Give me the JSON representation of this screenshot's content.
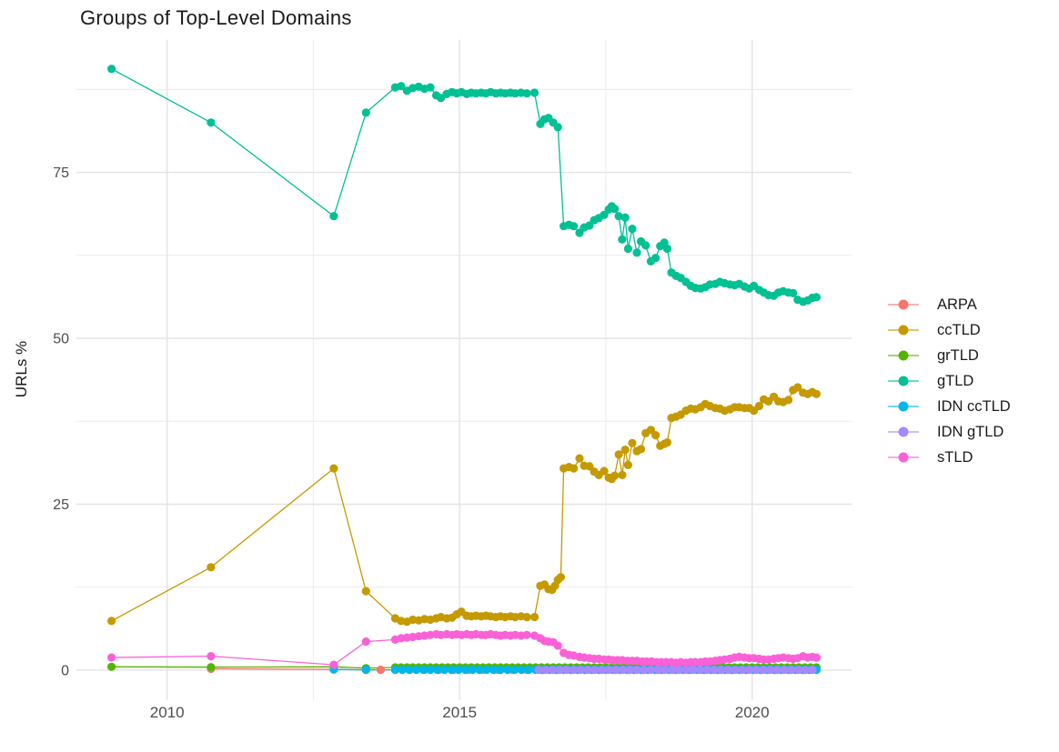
{
  "title": "Groups of Top-Level Domains",
  "y_axis": {
    "title": "URLs %",
    "tick_labels": [
      "0",
      "25",
      "50",
      "75"
    ],
    "tick_values": [
      0,
      25,
      50,
      75
    ],
    "minor_values": [
      12.5,
      37.5,
      62.5,
      87.5
    ]
  },
  "x_axis": {
    "tick_labels": [
      "2010",
      "2015",
      "2020"
    ],
    "tick_values": [
      2010,
      2015,
      2020
    ],
    "minor_values": [
      2012.5,
      2017.5
    ]
  },
  "colors": {
    "background": "#FFFFFF",
    "grid_major": "#E3E3E3",
    "grid_minor": "#ECECEC",
    "tick_text": "#4D4D4D",
    "title_text": "#1A1A1A"
  },
  "chart_data": {
    "type": "line",
    "title": "Groups of Top-Level Domains",
    "xlabel": "",
    "ylabel": "URLs %",
    "xlim": [
      2008.45,
      2021.7
    ],
    "ylim": [
      -4.5,
      95
    ],
    "grid": true,
    "legend_position": "right",
    "marker": "point",
    "series": [
      {
        "name": "ARPA",
        "color": "#F8766D",
        "points": [
          [
            2010.75,
            0.2
          ],
          [
            2012.85,
            0.1
          ]
        ],
        "flat": {
          "from": 2013.4,
          "to": 2021.1,
          "step": 0.25,
          "value": 0.05
        }
      },
      {
        "name": "ccTLD",
        "color": "#C49A00",
        "points": [
          [
            2009.05,
            7.4
          ],
          [
            2010.75,
            15.5
          ],
          [
            2012.85,
            30.4
          ],
          [
            2013.4,
            11.9
          ],
          [
            2013.9,
            7.8
          ],
          [
            2014.0,
            7.4
          ],
          [
            2014.1,
            7.3
          ],
          [
            2014.2,
            7.6
          ],
          [
            2014.3,
            7.5
          ],
          [
            2014.4,
            7.7
          ],
          [
            2014.5,
            7.6
          ],
          [
            2014.6,
            7.8
          ],
          [
            2014.68,
            8.0
          ],
          [
            2014.78,
            7.8
          ],
          [
            2014.87,
            7.9
          ],
          [
            2014.95,
            8.4
          ],
          [
            2015.03,
            8.8
          ],
          [
            2015.12,
            8.2
          ],
          [
            2015.2,
            8.1
          ],
          [
            2015.28,
            8.2
          ],
          [
            2015.37,
            8.1
          ],
          [
            2015.45,
            8.2
          ],
          [
            2015.53,
            8.1
          ],
          [
            2015.62,
            8.0
          ],
          [
            2015.7,
            8.1
          ],
          [
            2015.78,
            8.0
          ],
          [
            2015.87,
            8.1
          ],
          [
            2015.95,
            8.0
          ],
          [
            2016.05,
            8.1
          ],
          [
            2016.15,
            8.0
          ],
          [
            2016.28,
            8.0
          ],
          [
            2016.38,
            12.7
          ],
          [
            2016.45,
            12.9
          ],
          [
            2016.52,
            12.2
          ],
          [
            2016.58,
            12.1
          ],
          [
            2016.63,
            12.7
          ],
          [
            2016.68,
            13.6
          ],
          [
            2016.73,
            14.0
          ],
          [
            2016.78,
            30.4
          ],
          [
            2016.87,
            30.6
          ],
          [
            2016.95,
            30.4
          ],
          [
            2017.05,
            31.9
          ],
          [
            2017.13,
            30.8
          ],
          [
            2017.22,
            30.7
          ],
          [
            2017.3,
            29.9
          ],
          [
            2017.38,
            29.4
          ],
          [
            2017.47,
            30.0
          ],
          [
            2017.55,
            29.0
          ],
          [
            2017.6,
            28.8
          ],
          [
            2017.65,
            29.3
          ],
          [
            2017.72,
            32.5
          ],
          [
            2017.78,
            29.4
          ],
          [
            2017.83,
            33.2
          ],
          [
            2017.88,
            30.9
          ],
          [
            2017.95,
            34.2
          ],
          [
            2018.03,
            33.0
          ],
          [
            2018.1,
            33.3
          ],
          [
            2018.18,
            35.7
          ],
          [
            2018.27,
            36.2
          ],
          [
            2018.35,
            35.4
          ],
          [
            2018.43,
            33.8
          ],
          [
            2018.5,
            34.1
          ],
          [
            2018.55,
            34.3
          ],
          [
            2018.62,
            38.0
          ],
          [
            2018.7,
            38.2
          ],
          [
            2018.78,
            38.5
          ],
          [
            2018.87,
            39.1
          ],
          [
            2018.95,
            39.4
          ],
          [
            2019.03,
            39.3
          ],
          [
            2019.12,
            39.6
          ],
          [
            2019.2,
            40.1
          ],
          [
            2019.28,
            39.8
          ],
          [
            2019.37,
            39.5
          ],
          [
            2019.45,
            39.4
          ],
          [
            2019.53,
            39.1
          ],
          [
            2019.62,
            39.3
          ],
          [
            2019.7,
            39.6
          ],
          [
            2019.78,
            39.6
          ],
          [
            2019.87,
            39.5
          ],
          [
            2019.95,
            39.5
          ],
          [
            2020.03,
            39.1
          ],
          [
            2020.12,
            39.8
          ],
          [
            2020.2,
            40.8
          ],
          [
            2020.28,
            40.5
          ],
          [
            2020.37,
            41.2
          ],
          [
            2020.45,
            40.5
          ],
          [
            2020.53,
            40.4
          ],
          [
            2020.62,
            40.7
          ],
          [
            2020.7,
            42.2
          ],
          [
            2020.78,
            42.6
          ],
          [
            2020.87,
            41.8
          ],
          [
            2020.95,
            41.6
          ],
          [
            2021.03,
            41.9
          ],
          [
            2021.1,
            41.6
          ]
        ]
      },
      {
        "name": "grTLD",
        "color": "#53B400",
        "points": [
          [
            2009.05,
            0.5
          ],
          [
            2010.75,
            0.45
          ],
          [
            2012.85,
            0.5
          ],
          [
            2013.4,
            0.3
          ]
        ],
        "flat": {
          "from": 2013.9,
          "to": 2021.1,
          "step": 0.1,
          "value": 0.4
        }
      },
      {
        "name": "gTLD",
        "color": "#00C094",
        "points": [
          [
            2009.05,
            90.6
          ],
          [
            2010.75,
            82.5
          ],
          [
            2012.85,
            68.4
          ],
          [
            2013.4,
            84.0
          ],
          [
            2013.9,
            87.8
          ],
          [
            2014.0,
            88.0
          ],
          [
            2014.1,
            87.3
          ],
          [
            2014.2,
            87.7
          ],
          [
            2014.3,
            87.9
          ],
          [
            2014.4,
            87.6
          ],
          [
            2014.5,
            87.8
          ],
          [
            2014.6,
            86.6
          ],
          [
            2014.68,
            86.2
          ],
          [
            2014.78,
            86.8
          ],
          [
            2014.87,
            87.1
          ],
          [
            2014.95,
            86.9
          ],
          [
            2015.03,
            87.1
          ],
          [
            2015.12,
            86.8
          ],
          [
            2015.2,
            87.0
          ],
          [
            2015.28,
            86.9
          ],
          [
            2015.37,
            87.0
          ],
          [
            2015.45,
            86.9
          ],
          [
            2015.53,
            87.1
          ],
          [
            2015.62,
            86.9
          ],
          [
            2015.7,
            87.0
          ],
          [
            2015.78,
            86.9
          ],
          [
            2015.87,
            87.0
          ],
          [
            2015.95,
            86.9
          ],
          [
            2016.05,
            87.0
          ],
          [
            2016.15,
            86.9
          ],
          [
            2016.28,
            87.0
          ],
          [
            2016.38,
            82.3
          ],
          [
            2016.45,
            83.0
          ],
          [
            2016.52,
            83.2
          ],
          [
            2016.6,
            82.5
          ],
          [
            2016.68,
            81.8
          ],
          [
            2016.78,
            66.9
          ],
          [
            2016.87,
            67.1
          ],
          [
            2016.95,
            66.9
          ],
          [
            2017.05,
            65.9
          ],
          [
            2017.13,
            66.7
          ],
          [
            2017.22,
            67.0
          ],
          [
            2017.3,
            67.8
          ],
          [
            2017.38,
            68.1
          ],
          [
            2017.47,
            68.6
          ],
          [
            2017.55,
            69.4
          ],
          [
            2017.6,
            69.9
          ],
          [
            2017.65,
            69.5
          ],
          [
            2017.72,
            68.4
          ],
          [
            2017.78,
            64.9
          ],
          [
            2017.83,
            68.2
          ],
          [
            2017.88,
            63.5
          ],
          [
            2017.95,
            66.5
          ],
          [
            2018.03,
            62.9
          ],
          [
            2018.1,
            64.6
          ],
          [
            2018.18,
            64.0
          ],
          [
            2018.27,
            61.6
          ],
          [
            2018.35,
            62.1
          ],
          [
            2018.43,
            63.9
          ],
          [
            2018.5,
            64.4
          ],
          [
            2018.55,
            63.5
          ],
          [
            2018.62,
            59.9
          ],
          [
            2018.7,
            59.4
          ],
          [
            2018.78,
            59.1
          ],
          [
            2018.87,
            58.5
          ],
          [
            2018.95,
            57.9
          ],
          [
            2019.03,
            57.6
          ],
          [
            2019.12,
            57.5
          ],
          [
            2019.2,
            57.7
          ],
          [
            2019.28,
            58.1
          ],
          [
            2019.37,
            58.2
          ],
          [
            2019.45,
            58.5
          ],
          [
            2019.53,
            58.3
          ],
          [
            2019.62,
            58.1
          ],
          [
            2019.7,
            58.0
          ],
          [
            2019.78,
            58.2
          ],
          [
            2019.87,
            57.8
          ],
          [
            2019.95,
            57.5
          ],
          [
            2020.03,
            57.9
          ],
          [
            2020.12,
            57.3
          ],
          [
            2020.2,
            56.9
          ],
          [
            2020.28,
            56.5
          ],
          [
            2020.37,
            56.4
          ],
          [
            2020.45,
            56.9
          ],
          [
            2020.53,
            57.1
          ],
          [
            2020.62,
            56.9
          ],
          [
            2020.7,
            56.8
          ],
          [
            2020.78,
            55.8
          ],
          [
            2020.87,
            55.5
          ],
          [
            2020.95,
            55.7
          ],
          [
            2021.03,
            56.1
          ],
          [
            2021.1,
            56.2
          ]
        ]
      },
      {
        "name": "IDN ccTLD",
        "color": "#00B6EB",
        "points": [
          [
            2012.85,
            0.1
          ],
          [
            2013.4,
            0.05
          ]
        ],
        "flat": {
          "from": 2013.9,
          "to": 2021.1,
          "step": 0.12,
          "value": 0.05
        }
      },
      {
        "name": "IDN gTLD",
        "color": "#A58AFF",
        "points": [],
        "flat": {
          "from": 2016.35,
          "to": 2021.1,
          "step": 0.12,
          "value": 0.05
        }
      },
      {
        "name": "sTLD",
        "color": "#FB61D7",
        "points": [
          [
            2009.05,
            1.9
          ],
          [
            2010.75,
            2.1
          ],
          [
            2012.85,
            0.8
          ],
          [
            2013.4,
            4.3
          ],
          [
            2013.9,
            4.6
          ],
          [
            2014.0,
            4.8
          ],
          [
            2014.1,
            4.9
          ],
          [
            2014.2,
            5.0
          ],
          [
            2014.3,
            5.1
          ],
          [
            2014.4,
            5.2
          ],
          [
            2014.5,
            5.3
          ],
          [
            2014.6,
            5.4
          ],
          [
            2014.68,
            5.3
          ],
          [
            2014.78,
            5.4
          ],
          [
            2014.87,
            5.3
          ],
          [
            2014.95,
            5.4
          ],
          [
            2015.03,
            5.3
          ],
          [
            2015.12,
            5.4
          ],
          [
            2015.2,
            5.3
          ],
          [
            2015.28,
            5.4
          ],
          [
            2015.37,
            5.3
          ],
          [
            2015.45,
            5.3
          ],
          [
            2015.53,
            5.4
          ],
          [
            2015.62,
            5.3
          ],
          [
            2015.7,
            5.2
          ],
          [
            2015.78,
            5.3
          ],
          [
            2015.87,
            5.2
          ],
          [
            2015.95,
            5.3
          ],
          [
            2016.05,
            5.2
          ],
          [
            2016.15,
            5.3
          ],
          [
            2016.28,
            5.2
          ],
          [
            2016.38,
            4.8
          ],
          [
            2016.45,
            4.4
          ],
          [
            2016.52,
            4.3
          ],
          [
            2016.6,
            4.2
          ],
          [
            2016.68,
            3.7
          ],
          [
            2016.78,
            2.6
          ],
          [
            2016.87,
            2.3
          ],
          [
            2016.95,
            2.2
          ],
          [
            2017.05,
            2.0
          ],
          [
            2017.13,
            1.9
          ],
          [
            2017.22,
            1.8
          ],
          [
            2017.3,
            1.7
          ],
          [
            2017.38,
            1.7
          ],
          [
            2017.47,
            1.6
          ],
          [
            2017.55,
            1.6
          ],
          [
            2017.62,
            1.5
          ],
          [
            2017.7,
            1.5
          ],
          [
            2017.78,
            1.5
          ],
          [
            2017.87,
            1.4
          ],
          [
            2017.95,
            1.4
          ],
          [
            2018.03,
            1.4
          ],
          [
            2018.12,
            1.3
          ],
          [
            2018.2,
            1.3
          ],
          [
            2018.28,
            1.3
          ],
          [
            2018.37,
            1.2
          ],
          [
            2018.45,
            1.2
          ],
          [
            2018.53,
            1.2
          ],
          [
            2018.62,
            1.2
          ],
          [
            2018.7,
            1.1
          ],
          [
            2018.78,
            1.2
          ],
          [
            2018.87,
            1.1
          ],
          [
            2018.95,
            1.2
          ],
          [
            2019.03,
            1.2
          ],
          [
            2019.12,
            1.2
          ],
          [
            2019.2,
            1.3
          ],
          [
            2019.28,
            1.3
          ],
          [
            2019.37,
            1.4
          ],
          [
            2019.45,
            1.5
          ],
          [
            2019.53,
            1.6
          ],
          [
            2019.62,
            1.7
          ],
          [
            2019.7,
            1.9
          ],
          [
            2019.78,
            2.0
          ],
          [
            2019.87,
            1.9
          ],
          [
            2019.95,
            1.8
          ],
          [
            2020.03,
            1.8
          ],
          [
            2020.12,
            1.7
          ],
          [
            2020.2,
            1.6
          ],
          [
            2020.28,
            1.6
          ],
          [
            2020.37,
            1.7
          ],
          [
            2020.45,
            1.8
          ],
          [
            2020.53,
            1.9
          ],
          [
            2020.62,
            1.8
          ],
          [
            2020.7,
            1.7
          ],
          [
            2020.78,
            1.8
          ],
          [
            2020.87,
            2.1
          ],
          [
            2020.95,
            1.9
          ],
          [
            2021.03,
            2.0
          ],
          [
            2021.1,
            1.9
          ]
        ]
      }
    ]
  }
}
